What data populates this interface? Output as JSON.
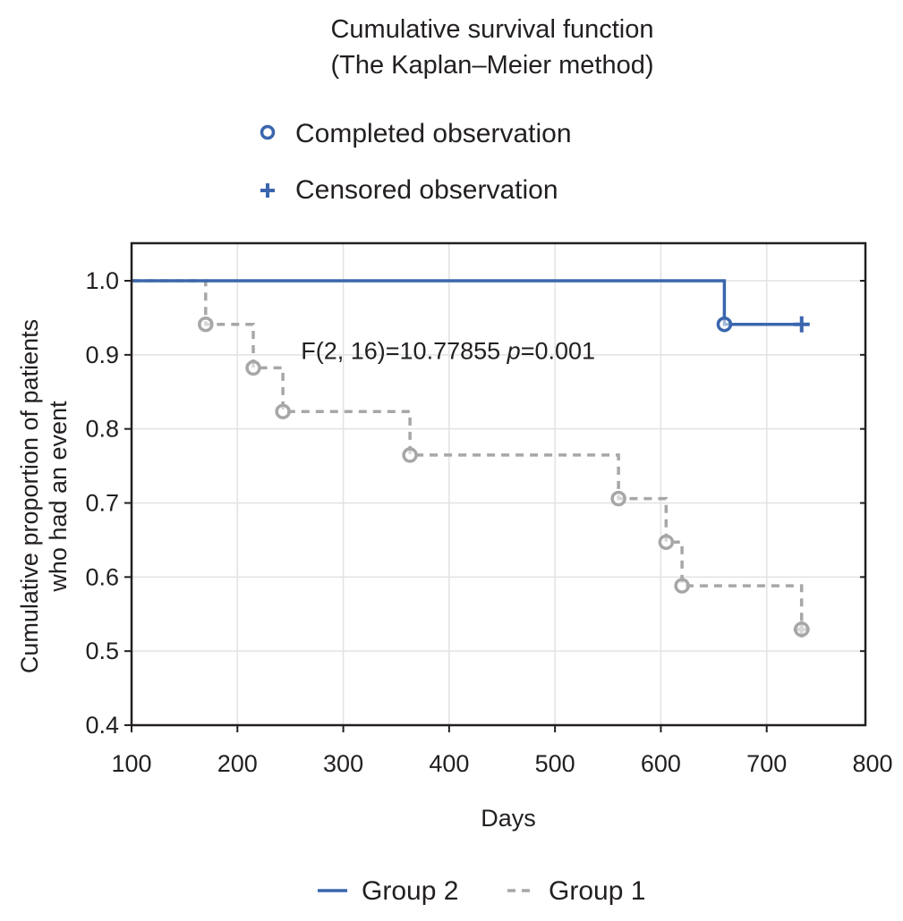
{
  "chart_data": {
    "type": "line",
    "title": "Cumulative survival function",
    "subtitle": "(The Kaplan–Meier  method)",
    "xlabel": "Days",
    "ylabel_lines": [
      "Cumulative proportion of patients",
      "who had an event"
    ],
    "xlim": [
      100,
      800
    ],
    "ylim": [
      0.4,
      1.05
    ],
    "x_ticks": [
      "100",
      "200",
      "300",
      "400",
      "500",
      "600",
      "700",
      "800"
    ],
    "y_ticks": [
      "0.4",
      "0.5",
      "0.6",
      "0.7",
      "0.8",
      "0.9",
      "1.0"
    ],
    "grid": true,
    "marker_legend": {
      "completed": "Completed observation",
      "censored": "Censored observation"
    },
    "annotation": {
      "prefix": "F(2, 16)=10.77855 ",
      "p_symbol": "p",
      "suffix": "=0.001",
      "x": 260,
      "y": 0.92
    },
    "series": [
      {
        "name": "Group 2",
        "color": "#3a66ae",
        "dash": "solid",
        "step_points": [
          [
            100,
            1.0
          ],
          [
            660,
            1.0
          ],
          [
            660,
            0.9412
          ],
          [
            733,
            0.9412
          ]
        ],
        "events": [
          [
            660,
            0.9412
          ]
        ],
        "censored": [
          [
            733,
            0.9412
          ]
        ]
      },
      {
        "name": "Group 1",
        "color": "#a7a7a7",
        "dash": "dashed",
        "step_points": [
          [
            100,
            1.0
          ],
          [
            170,
            1.0
          ],
          [
            170,
            0.9412
          ],
          [
            215,
            0.9412
          ],
          [
            215,
            0.8824
          ],
          [
            243,
            0.8824
          ],
          [
            243,
            0.8235
          ],
          [
            363,
            0.8235
          ],
          [
            363,
            0.7647
          ],
          [
            560,
            0.7647
          ],
          [
            560,
            0.7059
          ],
          [
            605,
            0.7059
          ],
          [
            605,
            0.6471
          ],
          [
            620,
            0.6471
          ],
          [
            620,
            0.5882
          ],
          [
            733,
            0.5882
          ],
          [
            733,
            0.5294
          ]
        ],
        "events": [
          [
            170,
            0.9412
          ],
          [
            215,
            0.8824
          ],
          [
            243,
            0.8235
          ],
          [
            363,
            0.7647
          ],
          [
            560,
            0.7059
          ],
          [
            605,
            0.6471
          ],
          [
            620,
            0.5882
          ],
          [
            733,
            0.5294
          ]
        ],
        "censored": [
          [
            733,
            0.5294
          ]
        ]
      }
    ],
    "legend_position": "bottom"
  }
}
